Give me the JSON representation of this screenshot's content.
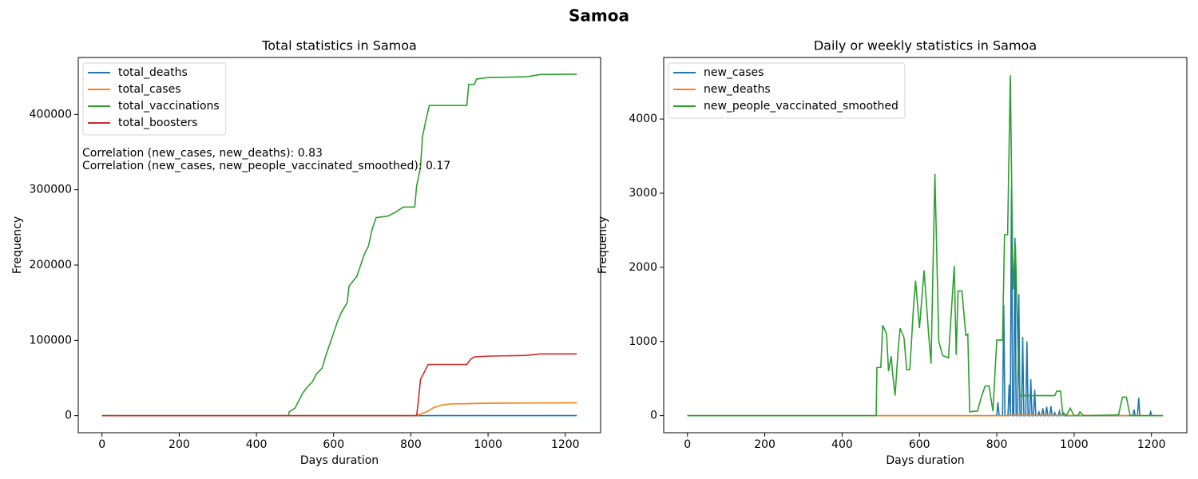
{
  "title": "Samoa",
  "chart_data": [
    {
      "type": "line",
      "title": "Total statistics in Samoa",
      "xlabel": "Days duration",
      "ylabel": "Frequency",
      "xlim": [
        -61.5,
        1291.5
      ],
      "ylim": [
        -22650,
        475650
      ],
      "xticks": [
        0,
        200,
        400,
        600,
        800,
        1000,
        1200
      ],
      "yticks": [
        0,
        100000,
        200000,
        300000,
        400000
      ],
      "legend": "upper left",
      "annotations": [
        "Correlation (new_cases, new_deaths): 0.83",
        "Correlation (new_cases, new_people_vaccinated_smoothed): 0.17"
      ],
      "series": [
        {
          "name": "total_deaths",
          "color": "#1f77b4",
          "x": [
            0,
            820,
            850,
            1230
          ],
          "values": [
            0,
            0,
            31,
            31
          ]
        },
        {
          "name": "total_cases",
          "color": "#ff7f0e",
          "x": [
            0,
            810,
            820,
            840,
            860,
            880,
            900,
            950,
            1000,
            1100,
            1230
          ],
          "values": [
            0,
            0,
            1000,
            5000,
            11000,
            14000,
            15500,
            16000,
            16500,
            16700,
            17000
          ]
        },
        {
          "name": "total_vaccinations",
          "color": "#2ca02c",
          "x": [
            0,
            483,
            485,
            500,
            510,
            520,
            530,
            545,
            555,
            570,
            580,
            590,
            600,
            610,
            620,
            635,
            640,
            660,
            670,
            680,
            690,
            700,
            710,
            740,
            760,
            780,
            810,
            815,
            825,
            830,
            840,
            848,
            945,
            950,
            965,
            970,
            1000,
            1100,
            1135,
            1230
          ],
          "values": [
            0,
            0,
            5000,
            10000,
            20000,
            30000,
            37000,
            45000,
            55000,
            63000,
            80000,
            95000,
            110000,
            125000,
            137000,
            150000,
            172000,
            185000,
            200000,
            215000,
            225000,
            248000,
            263000,
            265000,
            270000,
            277000,
            277000,
            305000,
            330000,
            370000,
            395000,
            412000,
            412000,
            440000,
            440000,
            447000,
            449000,
            450000,
            453000,
            453500
          ]
        },
        {
          "name": "total_boosters",
          "color": "#d62728",
          "x": [
            0,
            815,
            820,
            825,
            835,
            845,
            945,
            955,
            965,
            1000,
            1100,
            1135,
            1230
          ],
          "values": [
            0,
            0,
            22000,
            48000,
            58000,
            68000,
            68000,
            75000,
            78000,
            79000,
            80000,
            82000,
            82000
          ]
        }
      ]
    },
    {
      "type": "line",
      "title": "Daily or weekly statistics in Samoa",
      "xlabel": "Days duration",
      "ylabel": "Frequency",
      "xlim": [
        -61.5,
        1291.5
      ],
      "ylim": [
        -230,
        4830
      ],
      "xticks": [
        0,
        200,
        400,
        600,
        800,
        1000,
        1200
      ],
      "yticks": [
        0,
        1000,
        2000,
        3000,
        4000
      ],
      "legend": "upper left",
      "series": [
        {
          "name": "new_cases",
          "color": "#1f77b4",
          "x": [
            0,
            800,
            803,
            806,
            815,
            818,
            821,
            829,
            832,
            835,
            838,
            841,
            844,
            847,
            850,
            854,
            857,
            860,
            864,
            867,
            870,
            875,
            878,
            881,
            885,
            888,
            891,
            895,
            898,
            901,
            906,
            909,
            912,
            916,
            919,
            922,
            926,
            929,
            932,
            937,
            940,
            943,
            947,
            950,
            953,
            959,
            962,
            965,
            968,
            971,
            974,
            1152,
            1155,
            1158,
            1164,
            1167,
            1170,
            1195,
            1198,
            1201,
            1230
          ],
          "values": [
            0,
            0,
            180,
            0,
            0,
            1490,
            0,
            0,
            420,
            0,
            3080,
            0,
            0,
            2400,
            0,
            0,
            1640,
            0,
            0,
            1060,
            0,
            0,
            1000,
            0,
            0,
            490,
            0,
            0,
            350,
            0,
            0,
            50,
            0,
            0,
            100,
            0,
            0,
            120,
            0,
            0,
            130,
            0,
            0,
            40,
            0,
            0,
            60,
            0,
            0,
            30,
            0,
            0,
            80,
            0,
            0,
            240,
            0,
            0,
            50,
            0,
            0
          ]
        },
        {
          "name": "new_deaths",
          "color": "#ff7f0e",
          "x": [
            0,
            820,
            850,
            1230
          ],
          "values": [
            0,
            0,
            5,
            0
          ]
        },
        {
          "name": "new_people_vaccinated_smoothed",
          "color": "#2ca02c",
          "x": [
            0,
            488,
            490,
            500,
            505,
            515,
            520,
            527,
            530,
            537,
            545,
            550,
            560,
            567,
            575,
            585,
            590,
            600,
            612,
            623,
            630,
            640,
            650,
            660,
            675,
            690,
            695,
            700,
            710,
            720,
            725,
            730,
            740,
            750,
            760,
            770,
            780,
            790,
            800,
            815,
            820,
            828,
            835,
            842,
            848,
            855,
            860,
            950,
            955,
            965,
            970,
            980,
            990,
            1000,
            1010,
            1015,
            1025,
            1115,
            1125,
            1135,
            1145,
            1230
          ],
          "values": [
            0,
            0,
            650,
            650,
            1220,
            1100,
            600,
            800,
            600,
            270,
            900,
            1180,
            1050,
            620,
            620,
            1500,
            1820,
            1180,
            1960,
            1150,
            700,
            3260,
            1000,
            810,
            780,
            2020,
            820,
            1680,
            1680,
            1080,
            1100,
            50,
            60,
            60,
            250,
            400,
            400,
            60,
            1020,
            1020,
            2440,
            2440,
            4590,
            1700,
            2320,
            900,
            270,
            270,
            330,
            330,
            50,
            0,
            100,
            0,
            0,
            50,
            0,
            10,
            250,
            250,
            0,
            0
          ]
        }
      ]
    }
  ]
}
